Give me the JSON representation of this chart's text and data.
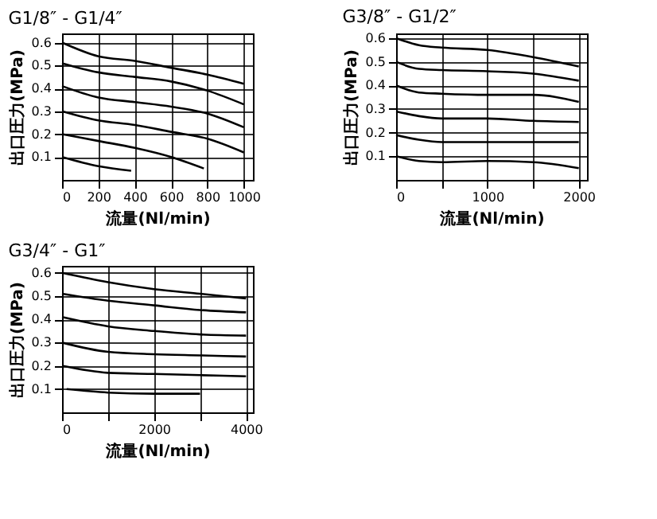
{
  "chart_data": [
    {
      "type": "line",
      "title": "G1/8″ - G1/4″",
      "xlabel": "流量(Nl/min)",
      "ylabel": "出口圧力(MPa)",
      "xlim": [
        0,
        1050
      ],
      "ylim": [
        0,
        0.64
      ],
      "xticks": [
        0,
        200,
        400,
        600,
        800,
        1000
      ],
      "yticks": [
        0.1,
        0.2,
        0.3,
        0.4,
        0.5,
        0.6
      ],
      "grid": true,
      "series": [
        {
          "color": "#000000",
          "x": [
            0,
            200,
            400,
            600,
            800,
            1000
          ],
          "values": [
            0.6,
            0.54,
            0.52,
            0.49,
            0.46,
            0.42
          ]
        },
        {
          "color": "#000000",
          "x": [
            0,
            200,
            400,
            600,
            800,
            1000
          ],
          "values": [
            0.51,
            0.47,
            0.45,
            0.43,
            0.39,
            0.33
          ]
        },
        {
          "color": "#000000",
          "x": [
            0,
            200,
            400,
            600,
            800,
            1000
          ],
          "values": [
            0.41,
            0.36,
            0.34,
            0.32,
            0.29,
            0.23
          ]
        },
        {
          "color": "#000000",
          "x": [
            0,
            200,
            400,
            600,
            800,
            1000
          ],
          "values": [
            0.3,
            0.26,
            0.24,
            0.21,
            0.18,
            0.12
          ]
        },
        {
          "color": "#000000",
          "x": [
            0,
            200,
            400,
            600,
            780
          ],
          "values": [
            0.2,
            0.17,
            0.14,
            0.1,
            0.05
          ]
        },
        {
          "color": "#000000",
          "x": [
            0,
            200,
            380
          ],
          "values": [
            0.1,
            0.06,
            0.04
          ]
        }
      ]
    },
    {
      "type": "line",
      "title": "G3/8″ - G1/2″",
      "xlabel": "流量(Nl/min)",
      "ylabel": "出口圧力(MPa)",
      "xlim": [
        0,
        2090
      ],
      "ylim": [
        0,
        0.62
      ],
      "xticks": [
        0,
        {
          "value": 500,
          "label": null
        },
        1000,
        {
          "value": 1500,
          "label": null
        },
        2000
      ],
      "yticks": [
        0.1,
        0.2,
        0.3,
        0.4,
        0.5,
        0.6
      ],
      "grid": true,
      "series": [
        {
          "color": "#000000",
          "x": [
            0,
            250,
            500,
            1000,
            1500,
            2000
          ],
          "values": [
            0.6,
            0.57,
            0.56,
            0.55,
            0.52,
            0.48
          ]
        },
        {
          "color": "#000000",
          "x": [
            0,
            250,
            500,
            1000,
            1500,
            2000
          ],
          "values": [
            0.5,
            0.47,
            0.465,
            0.46,
            0.45,
            0.42
          ]
        },
        {
          "color": "#000000",
          "x": [
            0,
            250,
            500,
            1000,
            1500,
            2000
          ],
          "values": [
            0.4,
            0.37,
            0.365,
            0.36,
            0.36,
            0.33
          ]
        },
        {
          "color": "#000000",
          "x": [
            0,
            250,
            500,
            1000,
            1500,
            2000
          ],
          "values": [
            0.29,
            0.27,
            0.26,
            0.26,
            0.25,
            0.245
          ]
        },
        {
          "color": "#000000",
          "x": [
            0,
            250,
            500,
            1000,
            1500,
            2000
          ],
          "values": [
            0.19,
            0.17,
            0.16,
            0.16,
            0.16,
            0.16
          ]
        },
        {
          "color": "#000000",
          "x": [
            0,
            250,
            500,
            1000,
            1500,
            2000
          ],
          "values": [
            0.1,
            0.08,
            0.075,
            0.08,
            0.075,
            0.05
          ]
        }
      ]
    },
    {
      "type": "line",
      "title": "G3/4″ - G1″",
      "xlabel": "流量(Nl/min)",
      "ylabel": "出口圧力(MPa)",
      "xlim": [
        0,
        4150
      ],
      "ylim": [
        0,
        0.63
      ],
      "xticks": [
        0,
        {
          "value": 1000,
          "label": null
        },
        2000,
        {
          "value": 3000,
          "label": null
        },
        4000
      ],
      "yticks": [
        0.1,
        0.2,
        0.3,
        0.4,
        0.5,
        0.6
      ],
      "grid": true,
      "series": [
        {
          "color": "#000000",
          "x": [
            0,
            1000,
            2000,
            3000,
            4000
          ],
          "values": [
            0.6,
            0.56,
            0.53,
            0.51,
            0.49
          ]
        },
        {
          "color": "#000000",
          "x": [
            0,
            1000,
            2000,
            3000,
            4000
          ],
          "values": [
            0.51,
            0.48,
            0.46,
            0.44,
            0.43
          ]
        },
        {
          "color": "#000000",
          "x": [
            0,
            1000,
            2000,
            3000,
            4000
          ],
          "values": [
            0.41,
            0.37,
            0.35,
            0.335,
            0.33
          ]
        },
        {
          "color": "#000000",
          "x": [
            0,
            1000,
            2000,
            3000,
            4000
          ],
          "values": [
            0.3,
            0.26,
            0.25,
            0.245,
            0.24
          ]
        },
        {
          "color": "#000000",
          "x": [
            0,
            1000,
            2000,
            3000,
            4000
          ],
          "values": [
            0.2,
            0.17,
            0.165,
            0.16,
            0.155
          ]
        },
        {
          "color": "#000000",
          "x": [
            100,
            1000,
            2000,
            3000
          ],
          "values": [
            0.1,
            0.085,
            0.08,
            0.08
          ]
        }
      ]
    }
  ]
}
